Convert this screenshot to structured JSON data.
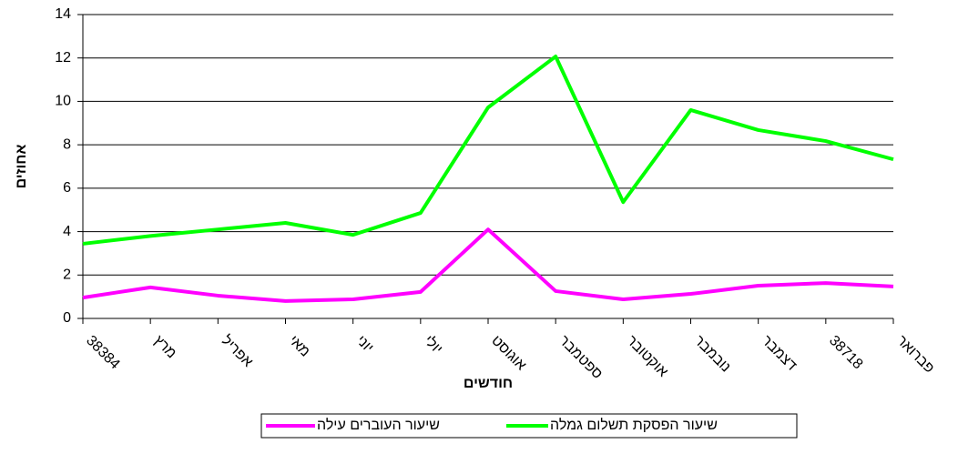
{
  "chart_data": {
    "type": "line",
    "y_label": "אחוזים",
    "x_label": "חודשים",
    "categories": [
      "38384",
      "מרץ",
      "אפריל",
      "מאי",
      "יוני",
      "יולי",
      "אוגוסט",
      "ספטמבר",
      "אוקטובר",
      "נובמבר",
      "דצמבר",
      "38718",
      "פברואר"
    ],
    "series": [
      {
        "name": "שיעור העוברים עילה",
        "color": "#ff00ff",
        "values": [
          0.96,
          1.43,
          1.05,
          0.8,
          0.88,
          1.22,
          4.1,
          1.26,
          0.88,
          1.13,
          1.51,
          1.63,
          1.47
        ]
      },
      {
        "name": "שיעור הפסקת תשלום גמלה",
        "color": "#00ff00",
        "values": [
          3.44,
          3.8,
          4.1,
          4.4,
          3.85,
          4.86,
          9.72,
          12.07,
          5.36,
          9.6,
          8.68,
          8.17,
          7.33
        ]
      }
    ],
    "ylim": [
      0,
      14
    ],
    "yticks": [
      0,
      2,
      4,
      6,
      8,
      10,
      12,
      14
    ],
    "grid": true
  }
}
